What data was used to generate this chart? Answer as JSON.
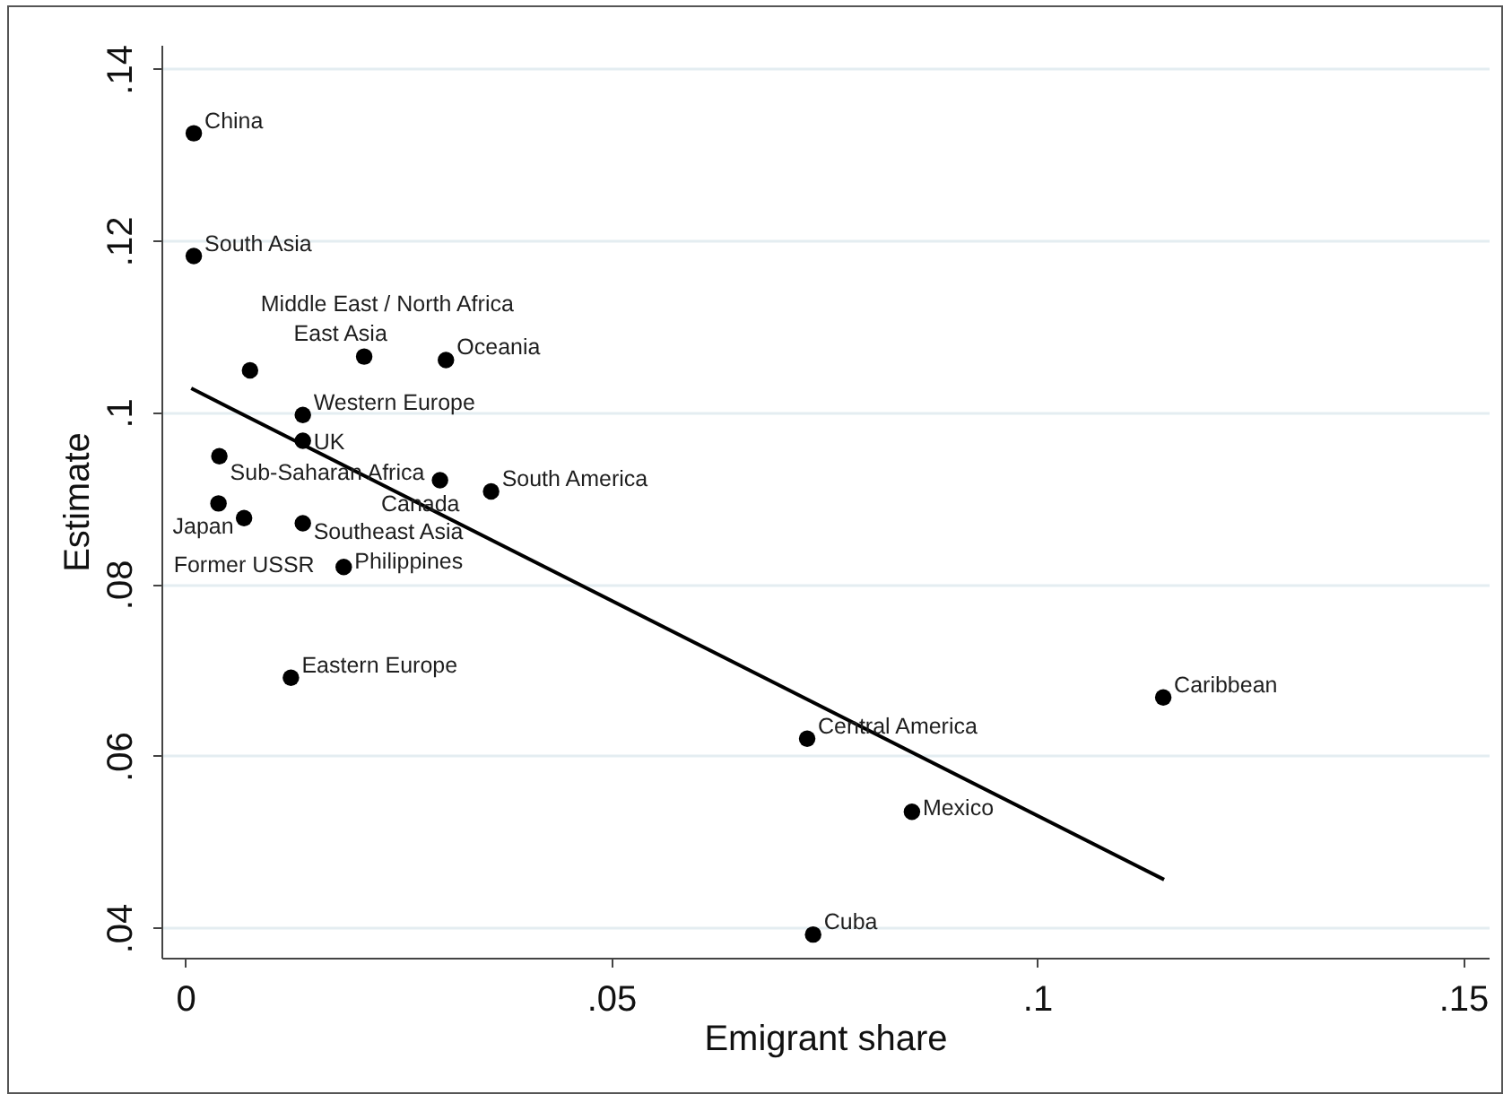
{
  "chart_data": {
    "type": "scatter",
    "xlabel": "Emigrant share",
    "ylabel": "Estimate",
    "xlim": [
      -0.0028,
      0.153
    ],
    "ylim": [
      0.0365,
      0.1428
    ],
    "xticks": [
      0,
      {
        "value": 0.05,
        "label": ".05"
      },
      {
        "value": 0.1,
        "label": ".1"
      },
      {
        "value": 0.15,
        "label": ".15"
      }
    ],
    "yticks": [
      {
        "value": 0.04,
        "label": ".04"
      },
      {
        "value": 0.06,
        "label": ".06"
      },
      {
        "value": 0.08,
        "label": ".08"
      },
      {
        "value": 0.1,
        "label": ".1"
      },
      {
        "value": 0.12,
        "label": ".12"
      },
      {
        "value": 0.14,
        "label": ".14"
      }
    ],
    "grid": "y",
    "series": [
      {
        "type": "scatter",
        "color": "#000000",
        "marker": "circle",
        "x": [
          0.001,
          0.001,
          0.0076,
          0.021,
          0.0306,
          0.0138,
          0.0138,
          0.004,
          0.0299,
          0.0359,
          0.0039,
          0.0069,
          0.0138,
          0.0186,
          0.0124,
          0.073,
          0.0853,
          0.0737,
          0.1148
        ],
        "values": [
          0.1325,
          0.1182,
          0.1049,
          0.1065,
          0.1061,
          0.0997,
          0.0967,
          0.0949,
          0.0921,
          0.0908,
          0.0894,
          0.0877,
          0.0871,
          0.082,
          0.0691,
          0.062,
          0.0535,
          0.0392,
          0.0668
        ]
      },
      {
        "type": "line",
        "color": "#000000",
        "x": [
          0.0007,
          0.1149
        ],
        "values": [
          0.1028,
          0.0456
        ]
      }
    ],
    "annotations": [
      {
        "text": "China",
        "x": 0.001,
        "y": 0.1325
      },
      {
        "text": "South Asia",
        "x": 0.001,
        "y": 0.1182
      },
      {
        "text": "East Asia",
        "x": 0.021,
        "y": 0.1065
      },
      {
        "text": "Oceania",
        "x": 0.0306,
        "y": 0.1061
      },
      {
        "text": "Middle East / North Africa",
        "x": 0.0076,
        "y": 0.1049
      },
      {
        "text": "Western Europe",
        "x": 0.0138,
        "y": 0.0997
      },
      {
        "text": "UK",
        "x": 0.0138,
        "y": 0.0967
      },
      {
        "text": "Sub-Saharan Africa",
        "x": 0.004,
        "y": 0.0949
      },
      {
        "text": "Canada",
        "x": 0.0299,
        "y": 0.0921
      },
      {
        "text": "South America",
        "x": 0.0359,
        "y": 0.0908
      },
      {
        "text": "Japan",
        "x": 0.0039,
        "y": 0.0894
      },
      {
        "text": "Former USSR",
        "x": 0.0069,
        "y": 0.0877
      },
      {
        "text": "Southeast Asia",
        "x": 0.0138,
        "y": 0.0871
      },
      {
        "text": "Philippines",
        "x": 0.0186,
        "y": 0.082
      },
      {
        "text": "Eastern Europe",
        "x": 0.0124,
        "y": 0.0691
      },
      {
        "text": "Central America",
        "x": 0.073,
        "y": 0.062
      },
      {
        "text": "Mexico",
        "x": 0.0853,
        "y": 0.0535
      },
      {
        "text": "Cuba",
        "x": 0.0737,
        "y": 0.0392
      },
      {
        "text": "Caribbean",
        "x": 0.1148,
        "y": 0.0668
      }
    ]
  }
}
